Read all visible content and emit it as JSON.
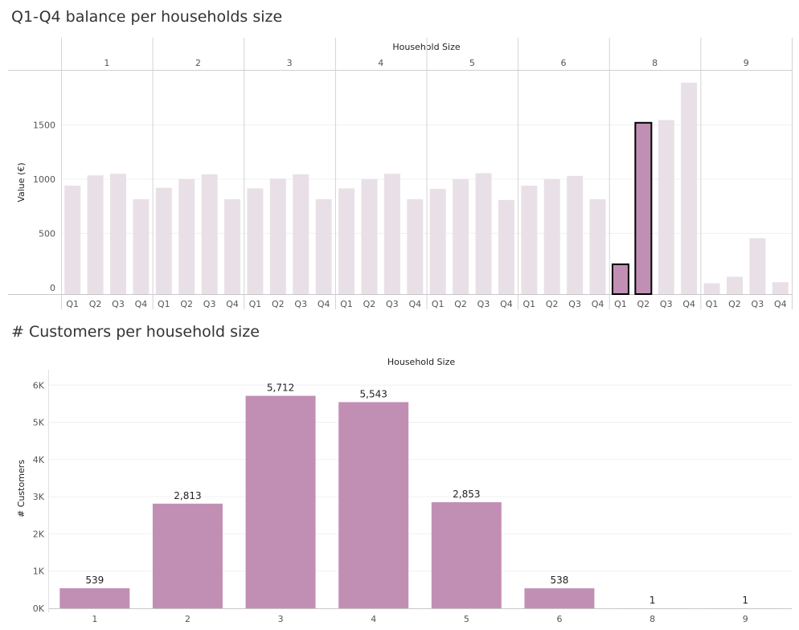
{
  "chart_data": [
    {
      "type": "bar",
      "title": "Q1-Q4 balance per households size",
      "column_header": "Household Size",
      "panels": [
        "1",
        "2",
        "3",
        "4",
        "5",
        "6",
        "8",
        "9"
      ],
      "categories": [
        "Q1",
        "Q2",
        "Q3",
        "Q4"
      ],
      "ylabel": "Value (€)",
      "yticks": [
        "0",
        "500",
        "1000",
        "1500"
      ],
      "ylim": [
        -60,
        2000
      ],
      "grid": true,
      "values": [
        [
          940,
          1035,
          1050,
          815
        ],
        [
          920,
          1000,
          1045,
          815
        ],
        [
          915,
          1005,
          1045,
          815
        ],
        [
          915,
          1000,
          1050,
          815
        ],
        [
          910,
          1000,
          1055,
          808
        ],
        [
          940,
          1000,
          1030,
          815
        ],
        [
          215,
          1520,
          1545,
          1890
        ],
        [
          40,
          100,
          455,
          50
        ]
      ],
      "highlighted": [
        {
          "panel": "8",
          "category": "Q1"
        },
        {
          "panel": "8",
          "category": "Q2"
        }
      ],
      "colors": {
        "muted": "#e9e0e7",
        "highlight": "#c28fb4",
        "outline": "#000000"
      }
    },
    {
      "type": "bar",
      "title": "# Customers per household size",
      "column_header": "Household Size",
      "categories": [
        "1",
        "2",
        "3",
        "4",
        "5",
        "6",
        "8",
        "9"
      ],
      "values": [
        539,
        2813,
        5712,
        5543,
        2853,
        538,
        1,
        1
      ],
      "labels": [
        "539",
        "2,813",
        "5,712",
        "5,543",
        "2,853",
        "538",
        "1",
        "1"
      ],
      "ylabel": "# Customers",
      "yticks": [
        "0K",
        "1K",
        "2K",
        "3K",
        "4K",
        "5K",
        "6K"
      ],
      "ylim": [
        0,
        6200
      ],
      "grid": true,
      "colors": {
        "bar": "#c28fb4"
      }
    }
  ]
}
